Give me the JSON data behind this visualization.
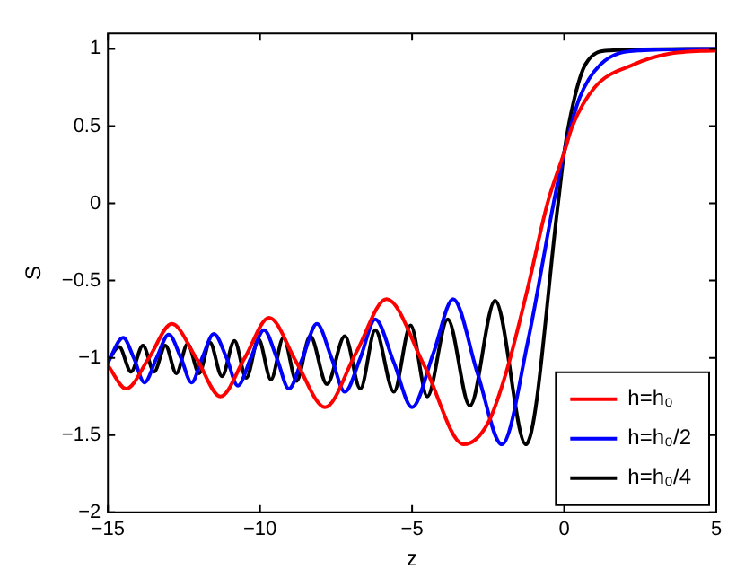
{
  "chart_data": {
    "type": "line",
    "xlabel": "z",
    "ylabel": "S",
    "xlim": [
      -15,
      5
    ],
    "ylim": [
      -2,
      1.1
    ],
    "xticks": [
      -15,
      -10,
      -5,
      0,
      5
    ],
    "yticks": [
      -2,
      -1.5,
      -1,
      -0.5,
      0,
      0.5,
      1
    ],
    "grid": false,
    "legend": "bottom right",
    "marker": "none",
    "line_style": "solid",
    "series": [
      {
        "name": "h=h₀",
        "color": "#ff0000",
        "x": [
          -15,
          -14.4,
          -13.65,
          -12.9,
          -12.1,
          -11.3,
          -10.5,
          -9.7,
          -8.8,
          -7.86,
          -6.85,
          -5.84,
          -4.6,
          -3.3,
          -2.5,
          -1.9,
          -1.2,
          -0.55,
          0,
          0.27,
          1,
          2.3,
          3.5,
          5
        ],
        "values": [
          -1.05,
          -1.2,
          -1.0,
          -0.78,
          -1.0,
          -1.25,
          -1.0,
          -0.74,
          -1.03,
          -1.32,
          -0.97,
          -0.62,
          -1.05,
          -1.56,
          -1.42,
          -1.09,
          -0.55,
          0,
          0.33,
          0.5,
          0.75,
          0.9,
          0.97,
          0.99
        ]
      },
      {
        "name": "h=h₀/2",
        "color": "#0000ff",
        "x": [
          -15,
          -14.5,
          -14.15,
          -13.8,
          -13.4,
          -13.0,
          -12.6,
          -12.25,
          -11.9,
          -11.52,
          -11.1,
          -10.73,
          -10.3,
          -9.87,
          -9.45,
          -9.05,
          -8.6,
          -8.13,
          -7.65,
          -7.21,
          -6.7,
          -6.21,
          -5.6,
          -5.0,
          -4.3,
          -3.65,
          -2.85,
          -2.05,
          -1.2,
          -0.35,
          0,
          0.5,
          1.2,
          2.5,
          5
        ],
        "values": [
          -1.03,
          -0.87,
          -1.0,
          -1.16,
          -1.0,
          -0.85,
          -1.0,
          -1.16,
          -1.0,
          -0.845,
          -1.0,
          -1.18,
          -1.0,
          -0.82,
          -1.0,
          -1.2,
          -1.0,
          -0.78,
          -1.0,
          -1.22,
          -1.0,
          -0.75,
          -1.03,
          -1.32,
          -0.97,
          -0.62,
          -1.1,
          -1.56,
          -0.9,
          0,
          0.33,
          0.68,
          0.9,
          0.99,
          1.0
        ]
      },
      {
        "name": "h=h₀/4",
        "color": "#000000",
        "x": [
          -15,
          -14.63,
          -14.24,
          -13.85,
          -13.48,
          -13.11,
          -12.75,
          -12.38,
          -12.0,
          -11.65,
          -11.25,
          -10.84,
          -10.45,
          -10.05,
          -9.64,
          -9.23,
          -8.8,
          -8.35,
          -7.8,
          -7.21,
          -6.7,
          -6.21,
          -5.6,
          -5.05,
          -4.5,
          -3.83,
          -3.1,
          -2.27,
          -1.26,
          -0.2,
          0,
          0.3,
          0.7,
          1.5,
          5
        ],
        "values": [
          -1.02,
          -0.93,
          -1.09,
          -0.92,
          -1.09,
          -0.92,
          -1.1,
          -0.91,
          -1.1,
          -0.9,
          -1.12,
          -0.89,
          -1.13,
          -0.88,
          -1.14,
          -0.87,
          -1.15,
          -0.86,
          -1.17,
          -0.86,
          -1.2,
          -0.82,
          -1.22,
          -0.79,
          -1.25,
          -0.75,
          -1.31,
          -0.63,
          -1.56,
          0,
          0.33,
          0.65,
          0.9,
          0.99,
          1.0
        ]
      }
    ]
  }
}
